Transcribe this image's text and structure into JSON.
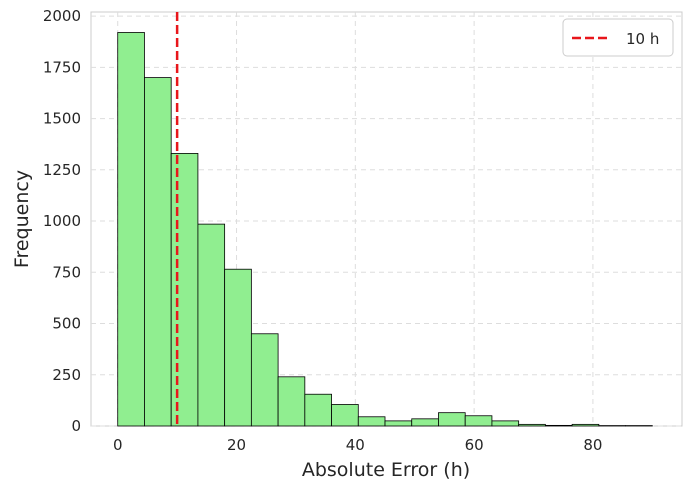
{
  "chart_data": {
    "type": "bar",
    "subtype": "histogram",
    "xlabel": "Absolute Error (h)",
    "ylabel": "Frequency",
    "bin_edges": [
      0,
      4.5,
      9,
      13.5,
      18,
      22.5,
      27,
      31.5,
      36,
      40.5,
      45,
      49.5,
      54,
      58.5,
      63,
      67.5,
      72,
      76.5,
      81,
      85.5,
      90
    ],
    "values": [
      1920,
      1700,
      1330,
      985,
      765,
      450,
      240,
      155,
      105,
      45,
      25,
      35,
      65,
      50,
      25,
      8,
      3,
      8,
      2,
      2
    ],
    "xlim": [
      -4.5,
      95
    ],
    "ylim": [
      0,
      2020
    ],
    "xticks": [
      0,
      20,
      40,
      60,
      80
    ],
    "yticks": [
      0,
      250,
      500,
      750,
      1000,
      1250,
      1500,
      1750,
      2000
    ],
    "reference_line": {
      "x": 10,
      "label": "10 h",
      "color": "#e8161b",
      "style": "dashed"
    },
    "bar_color": "#90ee90",
    "bar_edge_color": "#000000",
    "grid": true,
    "legend": {
      "position": "top-right",
      "entries": [
        "10 h"
      ]
    }
  }
}
